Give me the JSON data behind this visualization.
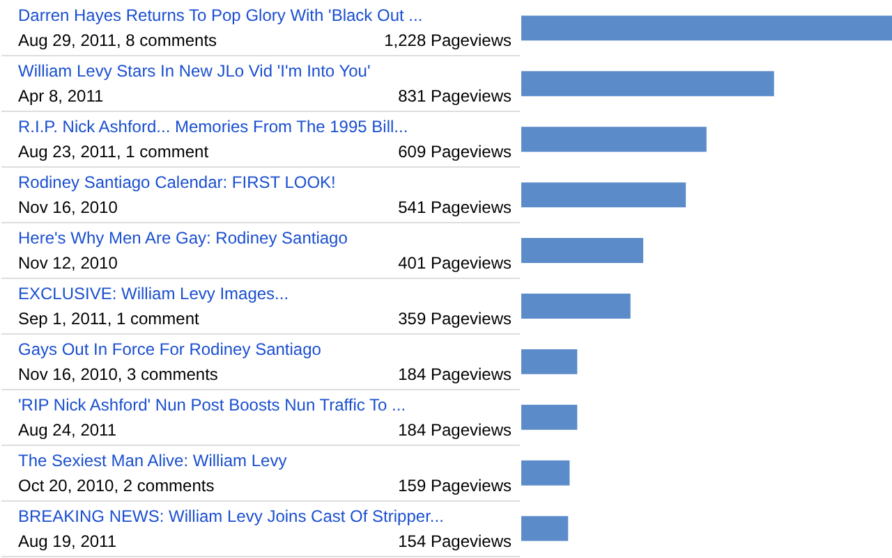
{
  "chart_data": {
    "type": "bar",
    "orientation": "horizontal",
    "color": "#5b8bc9",
    "categories": [
      "Darren Hayes Returns To Pop Glory With 'Black Out ...\nAug 29, 2011, 8 comments",
      "William Levy Stars In New JLo Vid 'I'm Into You'\nApr 8, 2011",
      "R.I.P. Nick Ashford... Memories From The 1995 Bill...\nAug 23, 2011, 1 comment",
      "Rodiney Santiago Calendar: FIRST LOOK!\nNov 16, 2010",
      "Here's Why Men Are Gay: Rodiney Santiago\nNov 12, 2010",
      "EXCLUSIVE: William Levy Images...\nSep 1, 2011, 1 comment",
      "Gays Out In Force For Rodiney Santiago\nNov 16, 2010, 3 comments",
      "'RIP Nick Ashford' Nun Post Boosts Nun Traffic To ...\nAug 24, 2011",
      "The Sexiest Man Alive: William Levy\nOct 20, 2010, 2 comments",
      "BREAKING NEWS: William Levy Joins Cast Of Stripper...\nAug 19, 2011"
    ],
    "values": [
      1228,
      831,
      609,
      541,
      401,
      359,
      184,
      184,
      159,
      154
    ],
    "value_labels": [
      "1,228 Pageviews",
      "831 Pageviews",
      "609 Pageviews",
      "541 Pageviews",
      "401 Pageviews",
      "359 Pageviews",
      "184 Pageviews",
      "184 Pageviews",
      "159 Pageviews",
      "154 Pageviews"
    ]
  }
}
